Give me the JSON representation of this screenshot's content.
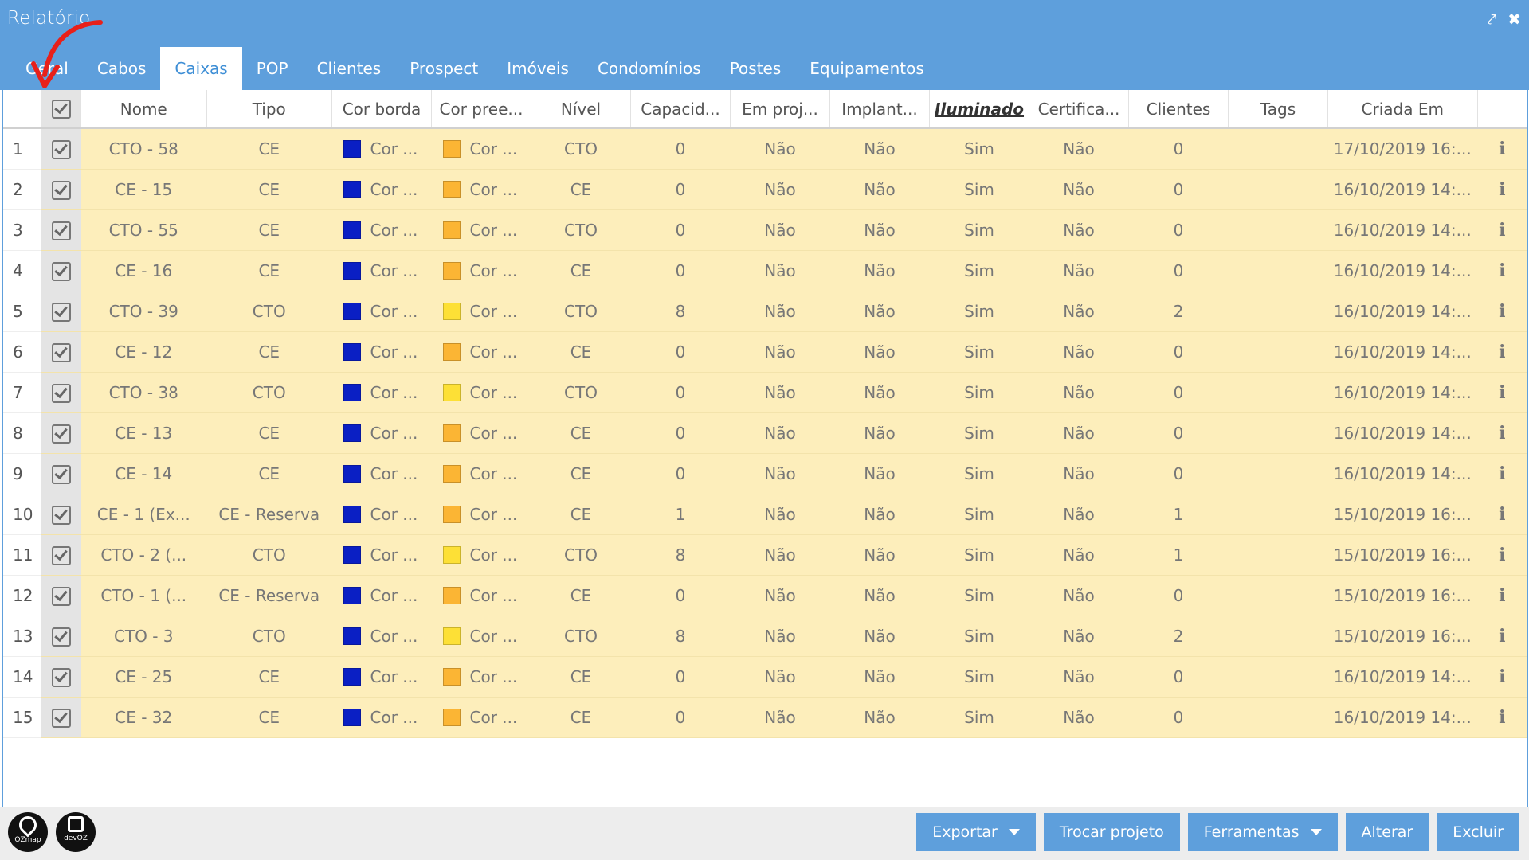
{
  "window": {
    "title": "Relatório"
  },
  "tabs": [
    {
      "label": "Geral",
      "active": false
    },
    {
      "label": "Cabos",
      "active": false
    },
    {
      "label": "Caixas",
      "active": true
    },
    {
      "label": "POP",
      "active": false
    },
    {
      "label": "Clientes",
      "active": false
    },
    {
      "label": "Prospect",
      "active": false
    },
    {
      "label": "Imóveis",
      "active": false
    },
    {
      "label": "Condomínios",
      "active": false
    },
    {
      "label": "Postes",
      "active": false
    },
    {
      "label": "Equipamentos",
      "active": false
    }
  ],
  "columns": [
    "Nome",
    "Tipo",
    "Cor borda",
    "Cor pree...",
    "Nível",
    "Capacid...",
    "Em proj...",
    "Implant...",
    "Iluminado",
    "Certifica...",
    "Clientes",
    "Tags",
    "Criada Em"
  ],
  "sorted_column": "Iluminado",
  "colors": {
    "border_blue": "#0a1fc4",
    "fill_orange": "#fbb534",
    "fill_yellow": "#fde036",
    "header_blue": "#5e9fdc",
    "row_bg": "#fdeebb"
  },
  "rows": [
    {
      "n": "1",
      "nome": "CTO - 58",
      "tipo": "CE",
      "cor_borda": "Cor ...",
      "cor_pree": "Cor ...",
      "fill": "orange",
      "nivel": "CTO",
      "capacidade": "0",
      "em_projeto": "Não",
      "implantado": "Não",
      "iluminado": "Sim",
      "certificado": "Não",
      "clientes": "0",
      "tags": "",
      "criada_em": "17/10/2019 16:..."
    },
    {
      "n": "2",
      "nome": "CE - 15",
      "tipo": "CE",
      "cor_borda": "Cor ...",
      "cor_pree": "Cor ...",
      "fill": "orange",
      "nivel": "CE",
      "capacidade": "0",
      "em_projeto": "Não",
      "implantado": "Não",
      "iluminado": "Sim",
      "certificado": "Não",
      "clientes": "0",
      "tags": "",
      "criada_em": "16/10/2019 14:..."
    },
    {
      "n": "3",
      "nome": "CTO - 55",
      "tipo": "CE",
      "cor_borda": "Cor ...",
      "cor_pree": "Cor ...",
      "fill": "orange",
      "nivel": "CTO",
      "capacidade": "0",
      "em_projeto": "Não",
      "implantado": "Não",
      "iluminado": "Sim",
      "certificado": "Não",
      "clientes": "0",
      "tags": "",
      "criada_em": "16/10/2019 14:..."
    },
    {
      "n": "4",
      "nome": "CE - 16",
      "tipo": "CE",
      "cor_borda": "Cor ...",
      "cor_pree": "Cor ...",
      "fill": "orange",
      "nivel": "CE",
      "capacidade": "0",
      "em_projeto": "Não",
      "implantado": "Não",
      "iluminado": "Sim",
      "certificado": "Não",
      "clientes": "0",
      "tags": "",
      "criada_em": "16/10/2019 14:..."
    },
    {
      "n": "5",
      "nome": "CTO - 39",
      "tipo": "CTO",
      "cor_borda": "Cor ...",
      "cor_pree": "Cor ...",
      "fill": "yellow",
      "nivel": "CTO",
      "capacidade": "8",
      "em_projeto": "Não",
      "implantado": "Não",
      "iluminado": "Sim",
      "certificado": "Não",
      "clientes": "2",
      "tags": "",
      "criada_em": "16/10/2019 14:..."
    },
    {
      "n": "6",
      "nome": "CE - 12",
      "tipo": "CE",
      "cor_borda": "Cor ...",
      "cor_pree": "Cor ...",
      "fill": "orange",
      "nivel": "CE",
      "capacidade": "0",
      "em_projeto": "Não",
      "implantado": "Não",
      "iluminado": "Sim",
      "certificado": "Não",
      "clientes": "0",
      "tags": "",
      "criada_em": "16/10/2019 14:..."
    },
    {
      "n": "7",
      "nome": "CTO - 38",
      "tipo": "CTO",
      "cor_borda": "Cor ...",
      "cor_pree": "Cor ...",
      "fill": "yellow",
      "nivel": "CTO",
      "capacidade": "0",
      "em_projeto": "Não",
      "implantado": "Não",
      "iluminado": "Sim",
      "certificado": "Não",
      "clientes": "0",
      "tags": "",
      "criada_em": "16/10/2019 14:..."
    },
    {
      "n": "8",
      "nome": "CE - 13",
      "tipo": "CE",
      "cor_borda": "Cor ...",
      "cor_pree": "Cor ...",
      "fill": "orange",
      "nivel": "CE",
      "capacidade": "0",
      "em_projeto": "Não",
      "implantado": "Não",
      "iluminado": "Sim",
      "certificado": "Não",
      "clientes": "0",
      "tags": "",
      "criada_em": "16/10/2019 14:..."
    },
    {
      "n": "9",
      "nome": "CE - 14",
      "tipo": "CE",
      "cor_borda": "Cor ...",
      "cor_pree": "Cor ...",
      "fill": "orange",
      "nivel": "CE",
      "capacidade": "0",
      "em_projeto": "Não",
      "implantado": "Não",
      "iluminado": "Sim",
      "certificado": "Não",
      "clientes": "0",
      "tags": "",
      "criada_em": "16/10/2019 14:..."
    },
    {
      "n": "10",
      "nome": "CE - 1 (Ex...",
      "tipo": "CE - Reserva",
      "cor_borda": "Cor ...",
      "cor_pree": "Cor ...",
      "fill": "orange",
      "nivel": "CE",
      "capacidade": "1",
      "em_projeto": "Não",
      "implantado": "Não",
      "iluminado": "Sim",
      "certificado": "Não",
      "clientes": "1",
      "tags": "",
      "criada_em": "15/10/2019 16:..."
    },
    {
      "n": "11",
      "nome": "CTO - 2 (...",
      "tipo": "CTO",
      "cor_borda": "Cor ...",
      "cor_pree": "Cor ...",
      "fill": "yellow",
      "nivel": "CTO",
      "capacidade": "8",
      "em_projeto": "Não",
      "implantado": "Não",
      "iluminado": "Sim",
      "certificado": "Não",
      "clientes": "1",
      "tags": "",
      "criada_em": "15/10/2019 16:..."
    },
    {
      "n": "12",
      "nome": "CTO - 1 (...",
      "tipo": "CE - Reserva",
      "cor_borda": "Cor ...",
      "cor_pree": "Cor ...",
      "fill": "orange",
      "nivel": "CE",
      "capacidade": "0",
      "em_projeto": "Não",
      "implantado": "Não",
      "iluminado": "Sim",
      "certificado": "Não",
      "clientes": "0",
      "tags": "",
      "criada_em": "15/10/2019 16:..."
    },
    {
      "n": "13",
      "nome": "CTO - 3",
      "tipo": "CTO",
      "cor_borda": "Cor ...",
      "cor_pree": "Cor ...",
      "fill": "yellow",
      "nivel": "CTO",
      "capacidade": "8",
      "em_projeto": "Não",
      "implantado": "Não",
      "iluminado": "Sim",
      "certificado": "Não",
      "clientes": "2",
      "tags": "",
      "criada_em": "15/10/2019 16:..."
    },
    {
      "n": "14",
      "nome": "CE - 25",
      "tipo": "CE",
      "cor_borda": "Cor ...",
      "cor_pree": "Cor ...",
      "fill": "orange",
      "nivel": "CE",
      "capacidade": "0",
      "em_projeto": "Não",
      "implantado": "Não",
      "iluminado": "Sim",
      "certificado": "Não",
      "clientes": "0",
      "tags": "",
      "criada_em": "16/10/2019 14:..."
    },
    {
      "n": "15",
      "nome": "CE - 32",
      "tipo": "CE",
      "cor_borda": "Cor ...",
      "cor_pree": "Cor ...",
      "fill": "orange",
      "nivel": "CE",
      "capacidade": "0",
      "em_projeto": "Não",
      "implantado": "Não",
      "iluminado": "Sim",
      "certificado": "Não",
      "clientes": "0",
      "tags": "",
      "criada_em": "16/10/2019 14:..."
    }
  ],
  "footer": {
    "logos": [
      {
        "label": "OZmap"
      },
      {
        "label": "devOZ"
      }
    ],
    "buttons": {
      "exportar": "Exportar",
      "trocar_projeto": "Trocar projeto",
      "ferramentas": "Ferramentas",
      "alterar": "Alterar",
      "excluir": "Excluir"
    }
  },
  "icons": {
    "minimize": "pin-icon",
    "close": "close-icon",
    "row_info": "info-icon",
    "annotation": "red-arrow-icon"
  }
}
